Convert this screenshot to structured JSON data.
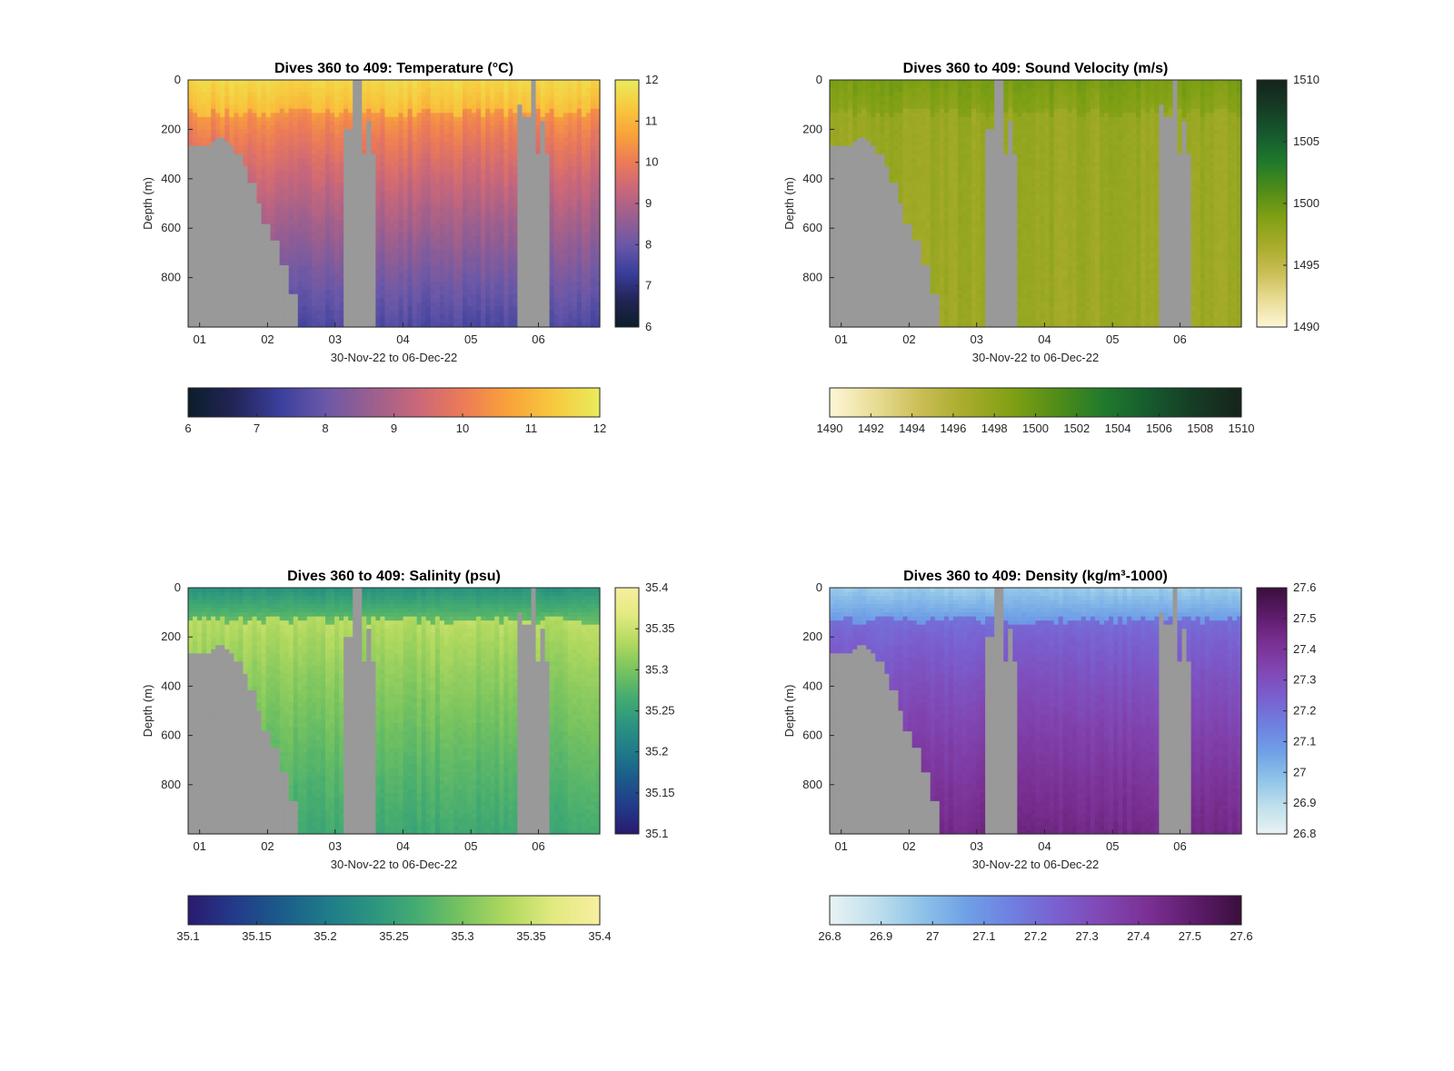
{
  "chart_data": [
    {
      "type": "heatmap",
      "title": "Dives 360 to 409: Temperature (°C)",
      "xlabel": "30-Nov-22 to 06-Dec-22",
      "ylabel": "Depth (m)",
      "x_ticks": [
        "01",
        "02",
        "03",
        "04",
        "05",
        "06"
      ],
      "y_ticks": [
        "0",
        "200",
        "400",
        "600",
        "800"
      ],
      "ylim": [
        0,
        1000
      ],
      "y_reversed": true,
      "colorbar": {
        "min": 6,
        "max": 12,
        "ticks_vertical": [
          "6",
          "7",
          "8",
          "9",
          "10",
          "11",
          "12"
        ],
        "ticks_horizontal": [
          "6",
          "7",
          "8",
          "9",
          "10",
          "11",
          "12"
        ]
      },
      "colormap": [
        "#0b1e2a",
        "#232457",
        "#3a3f9c",
        "#6a58a8",
        "#9a5f8f",
        "#c9677a",
        "#ec7b57",
        "#f9a23a",
        "#f7c93e",
        "#e8ec5c"
      ],
      "profile": {
        "surface_value": 11.6,
        "thermocline_value": 10.5,
        "deep_value": 7.6,
        "mixed_layer_depth": 130
      },
      "no_data_color": "#999999"
    },
    {
      "type": "heatmap",
      "title": "Dives 360 to 409: Sound Velocity (m/s)",
      "xlabel": "30-Nov-22 to 06-Dec-22",
      "ylabel": "Depth (m)",
      "x_ticks": [
        "01",
        "02",
        "03",
        "04",
        "05",
        "06"
      ],
      "y_ticks": [
        "0",
        "200",
        "400",
        "600",
        "800"
      ],
      "ylim": [
        0,
        1000
      ],
      "y_reversed": true,
      "colorbar": {
        "min": 1490,
        "max": 1510,
        "ticks_vertical": [
          "1490",
          "1495",
          "1500",
          "1505",
          "1510"
        ],
        "ticks_horizontal": [
          "1490",
          "1492",
          "1494",
          "1496",
          "1498",
          "1500",
          "1502",
          "1504",
          "1506",
          "1508",
          "1510"
        ]
      },
      "colormap": [
        "#fdf6d6",
        "#e9dc95",
        "#c9bd54",
        "#a6ab2a",
        "#80a014",
        "#4f8c18",
        "#1f7a2c",
        "#165a2e",
        "#163b25",
        "#15241b"
      ],
      "profile": {
        "surface_value": 1499.2,
        "thermocline_value": 1497.5,
        "deep_value": 1497.2,
        "mixed_layer_depth": 130
      },
      "no_data_color": "#999999"
    },
    {
      "type": "heatmap",
      "title": "Dives 360 to 409: Salinity (psu)",
      "xlabel": "30-Nov-22 to 06-Dec-22",
      "ylabel": "Depth (m)",
      "x_ticks": [
        "01",
        "02",
        "03",
        "04",
        "05",
        "06"
      ],
      "y_ticks": [
        "0",
        "200",
        "400",
        "600",
        "800"
      ],
      "ylim": [
        0,
        1000
      ],
      "y_reversed": true,
      "colorbar": {
        "min": 35.1,
        "max": 35.4,
        "ticks_vertical": [
          "35.1",
          "35.15",
          "35.2",
          "35.25",
          "35.3",
          "35.35",
          "35.4"
        ],
        "ticks_horizontal": [
          "35.1",
          "35.15",
          "35.2",
          "35.25",
          "35.3",
          "35.35",
          "35.4"
        ]
      },
      "colormap": [
        "#2a1a6e",
        "#233a8a",
        "#1b5a8a",
        "#1f7a8a",
        "#2a9480",
        "#45ac70",
        "#79c45f",
        "#b2d95f",
        "#e2ea80",
        "#f8eea0"
      ],
      "profile": {
        "surface_value": 35.23,
        "thermocline_value": 35.34,
        "deep_value": 35.26,
        "mixed_layer_depth": 130
      },
      "no_data_color": "#999999"
    },
    {
      "type": "heatmap",
      "title": "Dives 360 to 409: Density (kg/m³-1000)",
      "xlabel": "30-Nov-22 to 06-Dec-22",
      "ylabel": "Depth (m)",
      "x_ticks": [
        "01",
        "02",
        "03",
        "04",
        "05",
        "06"
      ],
      "y_ticks": [
        "0",
        "200",
        "400",
        "600",
        "800"
      ],
      "ylim": [
        0,
        1000
      ],
      "y_reversed": true,
      "colorbar": {
        "min": 26.8,
        "max": 27.6,
        "ticks_vertical": [
          "26.8",
          "26.9",
          "27",
          "27.1",
          "27.2",
          "27.3",
          "27.4",
          "27.5",
          "27.6"
        ],
        "ticks_horizontal": [
          "26.8",
          "26.9",
          "27",
          "27.1",
          "27.2",
          "27.3",
          "27.4",
          "27.5",
          "27.6"
        ]
      },
      "colormap": [
        "#e9f2f4",
        "#bfe0ec",
        "#8fc3e8",
        "#6fa0e6",
        "#6f7fe0",
        "#7a5fcf",
        "#8146b2",
        "#7a2f92",
        "#5d1b6a",
        "#3a0f3c"
      ],
      "profile": {
        "surface_value": 26.95,
        "thermocline_value": 27.2,
        "deep_value": 27.45,
        "mixed_layer_depth": 130
      },
      "no_data_color": "#999999"
    }
  ]
}
